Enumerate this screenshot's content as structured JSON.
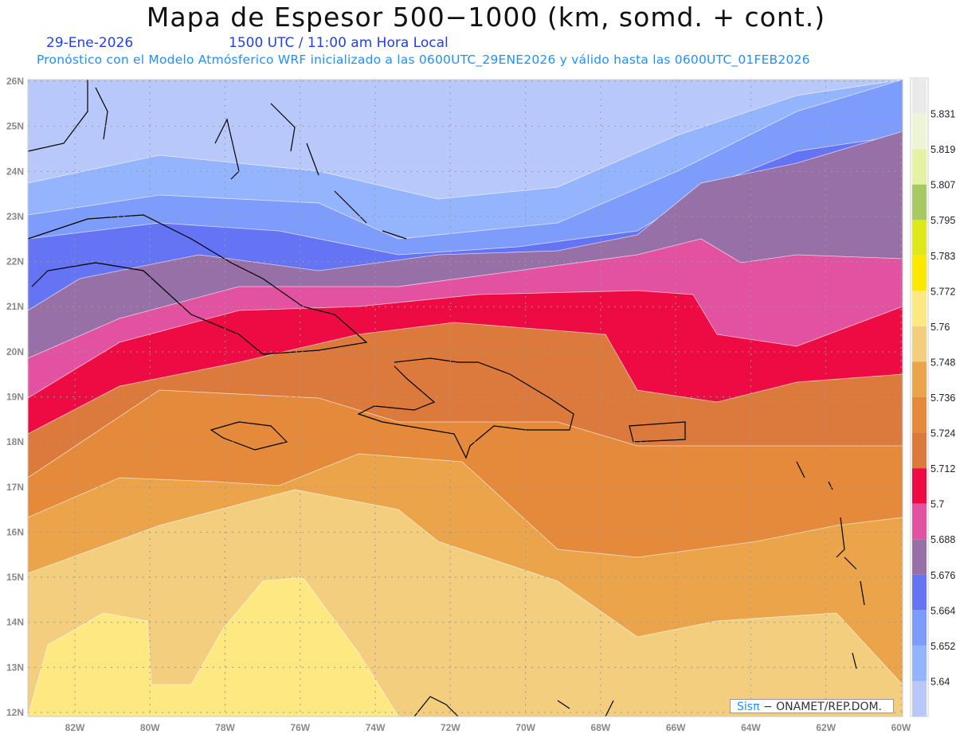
{
  "title": "Mapa de Espesor 500−1000 (km, somd. + cont.)",
  "date": "29-Ene-2026",
  "time": "1500 UTC / 11:00 am Hora Local",
  "subtitle": "Pronóstico con el Modelo Atmósferico WRF inicializado a las 0600UTC_29ENE2026 y válido hasta las  0600UTC_01FEB2026",
  "credit": {
    "brand": "Sisπ",
    "text": " −  ONAMET/REP.DOM."
  },
  "lat_labels": [
    "12N",
    "13N",
    "14N",
    "15N",
    "16N",
    "17N",
    "18N",
    "19N",
    "20N",
    "21N",
    "22N",
    "23N",
    "24N",
    "25N",
    "26N"
  ],
  "lon_labels": [
    "82W",
    "80W",
    "78W",
    "76W",
    "74W",
    "72W",
    "70W",
    "68W",
    "66W",
    "64W",
    "62W",
    "60W"
  ],
  "colorbar": {
    "levels": [
      "5.64",
      "5.652",
      "5.664",
      "5.676",
      "5.688",
      "5.7",
      "5.712",
      "5.724",
      "5.736",
      "5.748",
      "5.76",
      "5.772",
      "5.783",
      "5.795",
      "5.807",
      "5.819",
      "5.831"
    ],
    "colors": [
      "#b8c8fb",
      "#94b4fd",
      "#7e9cfb",
      "#6474f4",
      "#9870a8",
      "#e352a0",
      "#ee0a42",
      "#db7a3c",
      "#e48a3a",
      "#eba44a",
      "#f2ce7e",
      "#fde882",
      "#fce800",
      "#dfe81c",
      "#a7c862",
      "#e5f2a2",
      "#eef4d6",
      "#eaeaea"
    ]
  }
}
